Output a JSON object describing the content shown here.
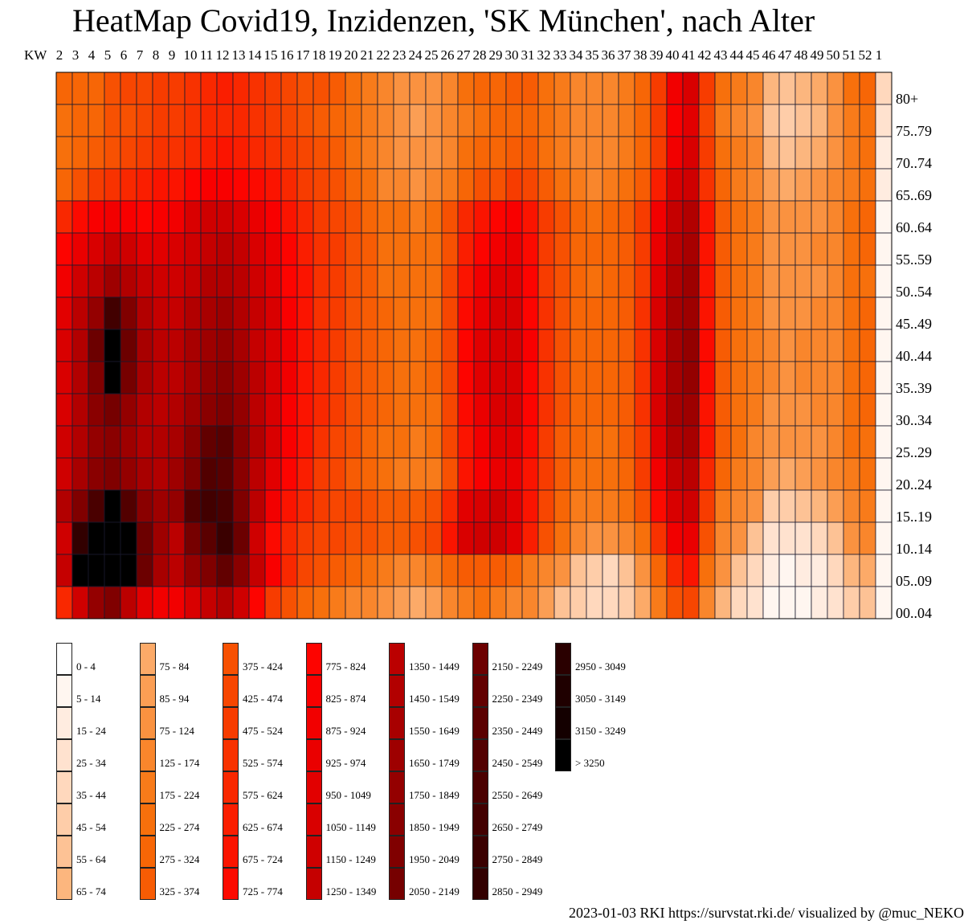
{
  "title": "HeatMap Covid19, Inzidenzen, 'SK München', nach Alter",
  "footer": "2023-01-03 RKI https://survstat.rki.de/ visualized by @muc_NEKO",
  "chart_data": {
    "type": "heatmap",
    "x_axis_label": "KW",
    "weeks": [
      2,
      3,
      4,
      5,
      6,
      7,
      8,
      9,
      10,
      11,
      12,
      13,
      14,
      15,
      16,
      17,
      18,
      19,
      20,
      21,
      22,
      23,
      24,
      25,
      26,
      27,
      28,
      29,
      30,
      31,
      32,
      33,
      34,
      35,
      36,
      37,
      38,
      39,
      40,
      41,
      42,
      43,
      44,
      45,
      46,
      47,
      48,
      49,
      50,
      51,
      52,
      1
    ],
    "age_groups": [
      "80+",
      "75..79",
      "70..74",
      "65..69",
      "60..64",
      "55..59",
      "50..54",
      "45..49",
      "40..44",
      "35..39",
      "30..34",
      "25..29",
      "20..24",
      "15..19",
      "10..14",
      "05..09",
      "00..04"
    ],
    "incidence": [
      [
        280,
        300,
        320,
        400,
        430,
        470,
        500,
        520,
        570,
        620,
        640,
        600,
        560,
        520,
        470,
        420,
        380,
        330,
        260,
        200,
        150,
        120,
        100,
        110,
        160,
        230,
        280,
        300,
        350,
        330,
        260,
        200,
        160,
        150,
        160,
        200,
        300,
        500,
        900,
        1050,
        500,
        250,
        200,
        150,
        70,
        60,
        70,
        80,
        110,
        250,
        300,
        40
      ],
      [
        250,
        280,
        300,
        380,
        420,
        450,
        480,
        500,
        560,
        600,
        620,
        580,
        540,
        500,
        450,
        400,
        350,
        300,
        240,
        190,
        140,
        110,
        90,
        100,
        150,
        220,
        270,
        280,
        320,
        300,
        240,
        180,
        140,
        130,
        140,
        180,
        280,
        480,
        850,
        1000,
        450,
        220,
        170,
        120,
        55,
        50,
        60,
        70,
        100,
        200,
        250,
        30
      ],
      [
        260,
        300,
        340,
        420,
        460,
        500,
        540,
        560,
        620,
        660,
        680,
        640,
        600,
        560,
        500,
        440,
        380,
        330,
        260,
        200,
        150,
        120,
        100,
        110,
        170,
        250,
        300,
        310,
        360,
        330,
        260,
        200,
        160,
        140,
        150,
        190,
        300,
        520,
        900,
        1050,
        480,
        240,
        180,
        130,
        70,
        60,
        70,
        80,
        110,
        210,
        250,
        20
      ],
      [
        300,
        380,
        480,
        560,
        620,
        650,
        680,
        700,
        780,
        830,
        850,
        800,
        740,
        680,
        600,
        520,
        440,
        380,
        300,
        230,
        170,
        130,
        110,
        130,
        200,
        300,
        380,
        420,
        480,
        440,
        330,
        250,
        190,
        170,
        180,
        230,
        350,
        650,
        1050,
        1200,
        550,
        280,
        210,
        150,
        90,
        80,
        85,
        100,
        130,
        220,
        260,
        15
      ],
      [
        600,
        750,
        850,
        900,
        850,
        800,
        850,
        900,
        1050,
        1150,
        1200,
        1100,
        950,
        850,
        700,
        600,
        500,
        450,
        380,
        320,
        260,
        230,
        220,
        250,
        400,
        600,
        700,
        800,
        850,
        700,
        500,
        380,
        300,
        270,
        280,
        340,
        500,
        900,
        1300,
        1450,
        700,
        350,
        250,
        180,
        110,
        100,
        110,
        120,
        150,
        250,
        300,
        10
      ],
      [
        800,
        950,
        1100,
        1250,
        1150,
        1000,
        1000,
        1050,
        1200,
        1300,
        1350,
        1250,
        1100,
        950,
        800,
        650,
        550,
        480,
        400,
        330,
        270,
        240,
        230,
        260,
        420,
        650,
        800,
        900,
        950,
        750,
        520,
        390,
        310,
        280,
        290,
        350,
        520,
        950,
        1400,
        1550,
        720,
        360,
        260,
        190,
        120,
        110,
        120,
        130,
        160,
        260,
        300,
        10
      ],
      [
        900,
        1150,
        1400,
        1700,
        1500,
        1250,
        1150,
        1150,
        1300,
        1450,
        1500,
        1400,
        1200,
        1000,
        820,
        680,
        560,
        480,
        400,
        330,
        270,
        240,
        230,
        260,
        430,
        700,
        900,
        1000,
        1000,
        780,
        520,
        380,
        300,
        270,
        280,
        340,
        520,
        1000,
        1500,
        1650,
        700,
        340,
        250,
        180,
        110,
        100,
        110,
        120,
        150,
        240,
        270,
        10
      ],
      [
        1000,
        1400,
        1800,
        2700,
        2000,
        1500,
        1300,
        1300,
        1450,
        1600,
        1650,
        1500,
        1250,
        1050,
        850,
        700,
        570,
        490,
        410,
        340,
        280,
        250,
        240,
        270,
        450,
        750,
        950,
        1050,
        1050,
        800,
        540,
        390,
        310,
        280,
        290,
        350,
        540,
        1050,
        1550,
        1700,
        720,
        350,
        260,
        190,
        120,
        110,
        120,
        130,
        160,
        250,
        280,
        10
      ],
      [
        1050,
        1500,
        2200,
        3300,
        2200,
        1600,
        1400,
        1400,
        1550,
        1700,
        1800,
        1600,
        1300,
        1100,
        880,
        720,
        590,
        500,
        420,
        350,
        290,
        260,
        250,
        280,
        470,
        800,
        1000,
        1100,
        1100,
        830,
        560,
        400,
        320,
        290,
        300,
        360,
        560,
        1100,
        1600,
        1750,
        740,
        360,
        270,
        200,
        130,
        120,
        130,
        140,
        170,
        260,
        290,
        10
      ],
      [
        1050,
        1500,
        2000,
        3300,
        2100,
        1550,
        1400,
        1400,
        1550,
        1750,
        1850,
        1650,
        1350,
        1100,
        880,
        720,
        590,
        500,
        420,
        350,
        290,
        260,
        250,
        280,
        470,
        780,
        980,
        1080,
        1080,
        820,
        550,
        400,
        320,
        290,
        300,
        360,
        560,
        1100,
        1600,
        1750,
        740,
        360,
        270,
        200,
        130,
        120,
        130,
        140,
        170,
        260,
        290,
        10
      ],
      [
        1100,
        1500,
        1900,
        2100,
        1800,
        1500,
        1400,
        1450,
        1650,
        1900,
        2000,
        1750,
        1400,
        1100,
        870,
        710,
        580,
        490,
        410,
        340,
        280,
        250,
        240,
        270,
        460,
        760,
        950,
        1050,
        1050,
        800,
        540,
        390,
        310,
        280,
        290,
        350,
        540,
        1050,
        1550,
        1700,
        720,
        350,
        260,
        190,
        120,
        110,
        120,
        130,
        160,
        250,
        280,
        10
      ],
      [
        1150,
        1500,
        1800,
        1900,
        1700,
        1500,
        1450,
        1550,
        1850,
        2300,
        2400,
        1900,
        1450,
        1050,
        830,
        680,
        560,
        470,
        390,
        320,
        260,
        230,
        220,
        250,
        430,
        720,
        900,
        1000,
        1000,
        760,
        520,
        370,
        290,
        260,
        270,
        330,
        520,
        1000,
        1450,
        1550,
        680,
        330,
        240,
        170,
        110,
        100,
        110,
        120,
        150,
        230,
        260,
        10
      ],
      [
        1150,
        1600,
        1900,
        2000,
        1800,
        1550,
        1500,
        1650,
        2000,
        2500,
        2400,
        1900,
        1400,
        1000,
        780,
        640,
        520,
        440,
        360,
        290,
        230,
        200,
        190,
        220,
        400,
        680,
        850,
        950,
        950,
        720,
        480,
        340,
        260,
        230,
        240,
        300,
        480,
        900,
        1300,
        1400,
        620,
        300,
        210,
        140,
        90,
        80,
        90,
        100,
        130,
        210,
        240,
        5
      ],
      [
        1500,
        2000,
        2600,
        3300,
        2500,
        1900,
        1700,
        1800,
        2500,
        2700,
        2600,
        2000,
        1400,
        900,
        700,
        600,
        520,
        470,
        430,
        390,
        360,
        350,
        360,
        400,
        600,
        1000,
        1100,
        1150,
        1000,
        700,
        430,
        300,
        220,
        190,
        190,
        240,
        380,
        750,
        1100,
        1150,
        480,
        220,
        150,
        95,
        50,
        45,
        55,
        65,
        90,
        160,
        180,
        5
      ],
      [
        1200,
        2900,
        3300,
        3300,
        3300,
        2200,
        1700,
        1400,
        2100,
        2400,
        2800,
        2200,
        1200,
        750,
        600,
        520,
        470,
        430,
        400,
        380,
        370,
        370,
        380,
        430,
        700,
        1100,
        1200,
        1200,
        1000,
        660,
        390,
        250,
        150,
        120,
        120,
        160,
        260,
        560,
        900,
        950,
        380,
        160,
        95,
        60,
        30,
        25,
        30,
        40,
        60,
        110,
        130,
        5
      ],
      [
        1300,
        3300,
        3300,
        3300,
        3300,
        2200,
        1600,
        1400,
        1800,
        2000,
        2300,
        1900,
        1300,
        850,
        600,
        450,
        380,
        330,
        290,
        250,
        200,
        170,
        160,
        180,
        280,
        330,
        350,
        330,
        290,
        220,
        150,
        100,
        60,
        45,
        40,
        60,
        120,
        300,
        600,
        700,
        260,
        120,
        60,
        35,
        15,
        12,
        15,
        20,
        35,
        70,
        80,
        5
      ],
      [
        600,
        1200,
        1800,
        2000,
        1400,
        1000,
        900,
        900,
        1100,
        1300,
        1500,
        1200,
        800,
        500,
        380,
        300,
        240,
        200,
        160,
        130,
        100,
        85,
        78,
        85,
        140,
        200,
        230,
        210,
        170,
        130,
        90,
        62,
        45,
        40,
        40,
        50,
        80,
        190,
        400,
        450,
        160,
        70,
        40,
        25,
        10,
        8,
        10,
        15,
        25,
        45,
        55,
        5
      ]
    ]
  },
  "legend": [
    {
      "label": "0 - 4",
      "color": "#ffffff"
    },
    {
      "label": "5 - 14",
      "color": "#fff6f0"
    },
    {
      "label": "15 - 24",
      "color": "#ffece0"
    },
    {
      "label": "25 - 34",
      "color": "#ffe2cf"
    },
    {
      "label": "35 - 44",
      "color": "#ffd8bd"
    },
    {
      "label": "45 - 54",
      "color": "#fecda9"
    },
    {
      "label": "55 - 64",
      "color": "#fdc295"
    },
    {
      "label": "65 - 74",
      "color": "#fcb67e"
    },
    {
      "label": "75 - 84",
      "color": "#fcaa68"
    },
    {
      "label": "85 - 94",
      "color": "#fb9e54"
    },
    {
      "label": "75 - 124",
      "color": "#fa9240"
    },
    {
      "label": "125 - 174",
      "color": "#f9862c"
    },
    {
      "label": "175 - 224",
      "color": "#f87b1a"
    },
    {
      "label": "225 - 274",
      "color": "#f7700c"
    },
    {
      "label": "275 - 324",
      "color": "#f76606"
    },
    {
      "label": "325 - 374",
      "color": "#f75c04"
    },
    {
      "label": "375 - 424",
      "color": "#f75102"
    },
    {
      "label": "425 - 474",
      "color": "#f74601"
    },
    {
      "label": "475 - 524",
      "color": "#f73c00"
    },
    {
      "label": "525 - 574",
      "color": "#f83200"
    },
    {
      "label": "575 - 624",
      "color": "#f92800"
    },
    {
      "label": "625 - 674",
      "color": "#fa1e00"
    },
    {
      "label": "675 - 724",
      "color": "#fb1400"
    },
    {
      "label": "725 - 774",
      "color": "#fc0a00"
    },
    {
      "label": "775 - 824",
      "color": "#fd0400"
    },
    {
      "label": "825 - 874",
      "color": "#f90000"
    },
    {
      "label": "875 - 924",
      "color": "#f20000"
    },
    {
      "label": "925 - 974",
      "color": "#ea0000"
    },
    {
      "label": "950 - 1049",
      "color": "#e20000"
    },
    {
      "label": "1050 - 1149",
      "color": "#d90000"
    },
    {
      "label": "1150 - 1249",
      "color": "#cf0000"
    },
    {
      "label": "1250 - 1349",
      "color": "#c50000"
    },
    {
      "label": "1350 - 1449",
      "color": "#bb0000"
    },
    {
      "label": "1450 - 1549",
      "color": "#b20000"
    },
    {
      "label": "1550 - 1649",
      "color": "#a80000"
    },
    {
      "label": "1650 - 1749",
      "color": "#9e0000"
    },
    {
      "label": "1750 - 1849",
      "color": "#940000"
    },
    {
      "label": "1850 - 1949",
      "color": "#8a0000"
    },
    {
      "label": "1950 - 2049",
      "color": "#800000"
    },
    {
      "label": "2050 - 2149",
      "color": "#760000"
    },
    {
      "label": "2150 - 2249",
      "color": "#6c0000"
    },
    {
      "label": "2250 - 2349",
      "color": "#620000"
    },
    {
      "label": "2350 - 2449",
      "color": "#5a0000"
    },
    {
      "label": "2450 - 2549",
      "color": "#520000"
    },
    {
      "label": "2550 - 2649",
      "color": "#4a0000"
    },
    {
      "label": "2650 - 2749",
      "color": "#420000"
    },
    {
      "label": "2750 - 2849",
      "color": "#3a0000"
    },
    {
      "label": "2850 - 2949",
      "color": "#320000"
    },
    {
      "label": "2950 - 3049",
      "color": "#2a0000"
    },
    {
      "label": "3050 - 3149",
      "color": "#1f0000"
    },
    {
      "label": "3150 - 3249",
      "color": "#140000"
    },
    {
      "label": "> 3250",
      "color": "#000000"
    }
  ]
}
